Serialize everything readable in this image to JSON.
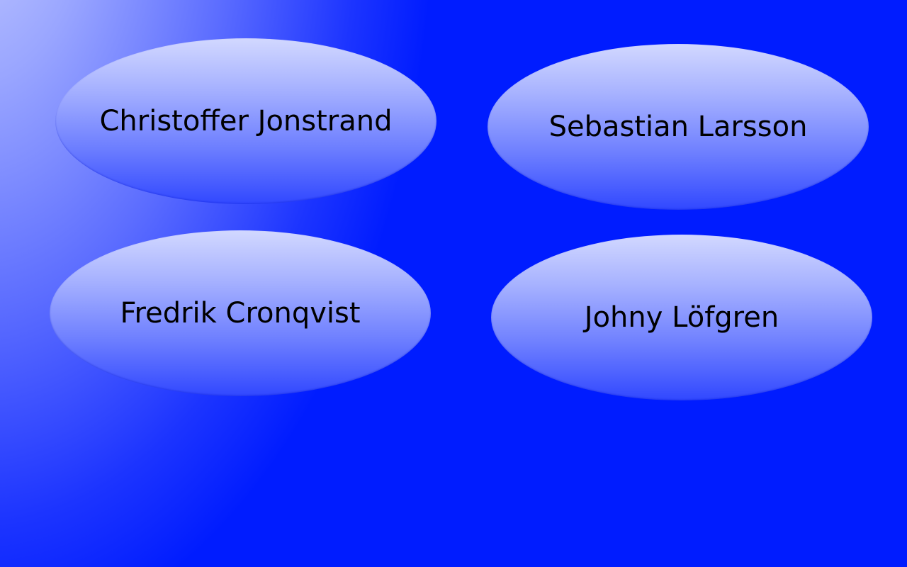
{
  "bubbles": [
    {
      "label": "Christoffer Jonstrand"
    },
    {
      "label": "Sebastian Larsson"
    },
    {
      "label": "Fredrik Cronqvist"
    },
    {
      "label": "Johny Löfgren"
    }
  ],
  "colors": {
    "background_dark": "#001cff",
    "background_light": "#c6cdff",
    "bubble_top": "#d2d8ff",
    "bubble_bottom": "#3148ff",
    "text": "#000000"
  }
}
